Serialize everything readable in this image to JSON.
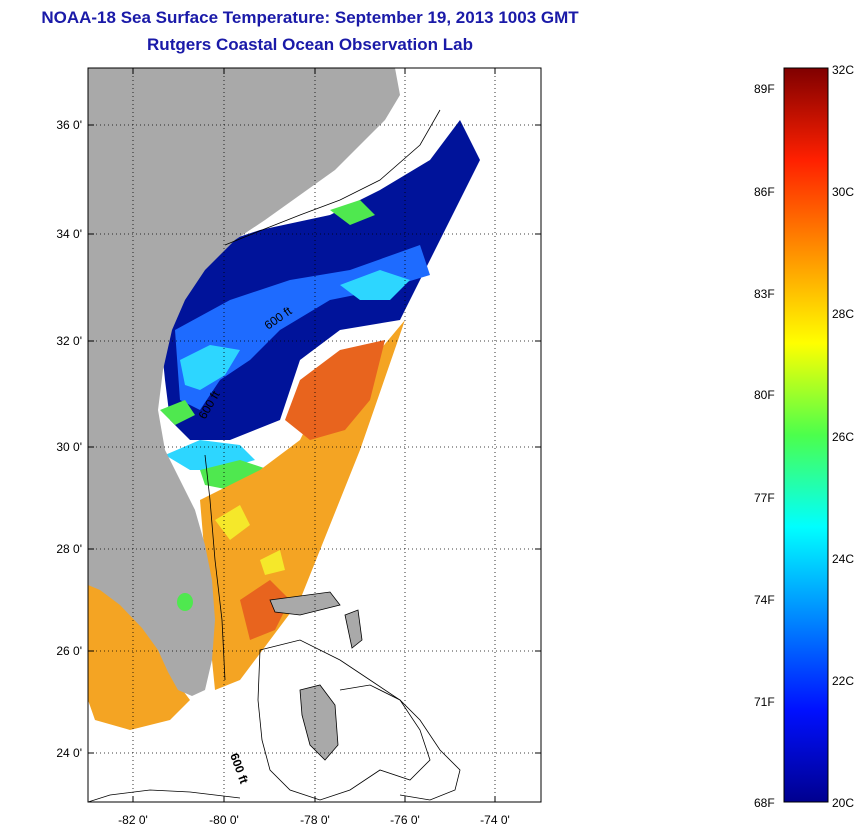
{
  "title": {
    "line1": "NOAA-18 Sea Surface Temperature:  September 19, 2013 1003 GMT",
    "line2": "Rutgers Coastal Ocean Observation Lab"
  },
  "map": {
    "lat_ticks": [
      "24 0'",
      "26 0'",
      "28 0'",
      "30 0'",
      "32 0'",
      "34 0'",
      "36 0'"
    ],
    "lon_ticks": [
      "-82 0'",
      "-80 0'",
      "-78 0'",
      "-76 0'",
      "-74 0'"
    ],
    "contour_labels": [
      "600 ft",
      "600 ft",
      "600 ft"
    ],
    "colors": {
      "land": "#a9a9a9",
      "cold": "#00139a",
      "cool": "#1e6bff",
      "mid": "#2dd6ff",
      "green": "#4fe84f",
      "yellow": "#f5e82a",
      "warm": "#f4a423",
      "hot": "#e8641e"
    }
  },
  "colorbar": {
    "fahrenheit": [
      "89F",
      "86F",
      "83F",
      "80F",
      "77F",
      "74F",
      "71F",
      "68F"
    ],
    "celsius": [
      "32C",
      "30C",
      "28C",
      "26C",
      "24C",
      "22C",
      "20C"
    ],
    "range_c": [
      20,
      32
    ]
  }
}
